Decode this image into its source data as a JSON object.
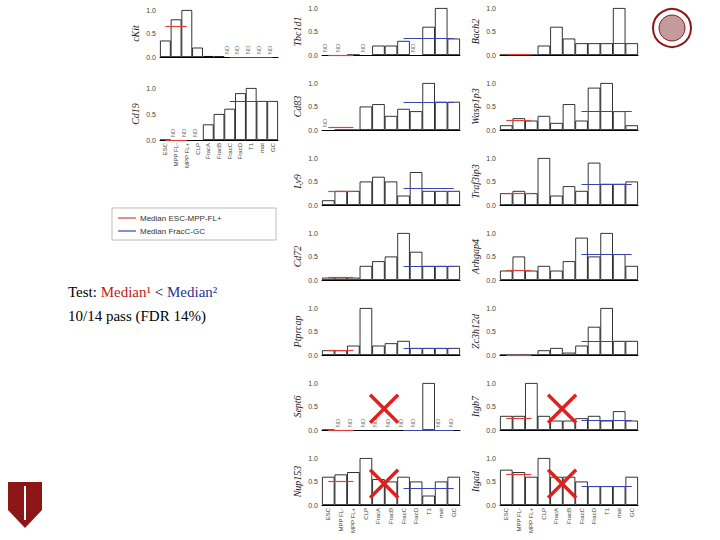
{
  "chart_data": [
    {
      "type": "bar",
      "ylabel": "cKit",
      "categories": [
        "ESC",
        "MPP FL-",
        "MPP FL+",
        "CLP",
        "FracA",
        "FracB",
        "FracC",
        "FracD",
        "T1",
        "mat",
        "GC"
      ],
      "values": [
        0.35,
        0.8,
        1.0,
        0.2,
        0.02,
        0.01,
        null,
        null,
        null,
        null,
        null
      ],
      "value_labels": [
        null,
        null,
        null,
        null,
        null,
        null,
        "ND",
        "ND",
        "ND",
        "ND",
        "ND"
      ],
      "medians": [
        0.65,
        0
      ],
      "color": "#ffffff",
      "ylim": [
        0,
        1
      ],
      "yticks": [
        {
          "value": 0,
          "label": "0.0"
        },
        0.5,
        {
          "value": 1,
          "label": "1.0"
        }
      ],
      "tick_labels": "y"
    },
    {
      "type": "bar",
      "ylabel": "Cd19",
      "categories": [
        "ESC",
        "MPP FL-",
        "MPP FL+",
        "CLP",
        "FracA",
        "FracB",
        "FracC",
        "FracD",
        "T1",
        "mat",
        "GC"
      ],
      "values": [
        0,
        null,
        null,
        null,
        0.3,
        0.5,
        0.6,
        0.9,
        1.0,
        0.75,
        0.75
      ],
      "value_labels": [
        null,
        "ND",
        "ND",
        "ND",
        null,
        null,
        null,
        null,
        null,
        null,
        null
      ],
      "medians": [
        0,
        0.75
      ],
      "color": "#ffffff",
      "ylim": [
        0,
        1
      ],
      "yticks": [
        {
          "value": 0,
          "label": "0.0"
        },
        0.5,
        {
          "value": 1,
          "label": "1.0"
        }
      ]
    },
    {
      "type": "bar",
      "ylabel": "Tbc1d1",
      "categories": [
        "ESC",
        "MPP FL-",
        "MPP FL+",
        "CLP",
        "FracA",
        "FracB",
        "FracC",
        "FracD",
        "T1",
        "mat",
        "GC"
      ],
      "values": [
        null,
        null,
        0,
        null,
        0.2,
        0.2,
        0.3,
        null,
        0.6,
        1.0,
        0.35
      ],
      "value_labels": [
        "ND",
        "ND",
        null,
        "ND",
        null,
        null,
        null,
        "ND",
        null,
        null,
        null
      ],
      "medians": [
        0,
        0.35
      ],
      "color": "#ffffff",
      "ylim": [
        0,
        1
      ],
      "yticks": [
        {
          "value": 0,
          "label": "0.0"
        },
        0.5,
        {
          "value": 1,
          "label": "1.0"
        }
      ],
      "tick_labels": "y"
    },
    {
      "type": "bar",
      "ylabel": "Cd83",
      "categories": [
        "ESC",
        "MPP FL-",
        "MPP FL+",
        "CLP",
        "FracA",
        "FracB",
        "FracC",
        "FracD",
        "T1",
        "mat",
        "GC"
      ],
      "values": [
        null,
        0,
        0,
        0.5,
        0.55,
        0.3,
        0.45,
        0.4,
        1.0,
        0.6,
        0.6
      ],
      "value_labels": [
        "ND",
        null,
        null,
        null,
        null,
        null,
        null,
        null,
        null,
        null,
        null
      ],
      "medians": [
        0.05,
        0.6
      ],
      "color": "#ffffff",
      "ylim": [
        0,
        1
      ],
      "yticks": [
        {
          "value": 0,
          "label": "0.0"
        },
        0.5,
        {
          "value": 1,
          "label": "1.0"
        }
      ],
      "tick_labels": "y"
    },
    {
      "type": "bar",
      "ylabel": "Ly9",
      "categories": [
        "ESC",
        "MPP FL-",
        "MPP FL+",
        "CLP",
        "FracA",
        "FracB",
        "FracC",
        "FracD",
        "T1",
        "mat",
        "GC"
      ],
      "values": [
        0.1,
        0.3,
        0.3,
        0.5,
        0.6,
        0.5,
        0.2,
        0.7,
        0.3,
        0.3,
        0.3
      ],
      "value_labels": [
        null,
        null,
        null,
        null,
        null,
        null,
        null,
        null,
        null,
        null,
        null
      ],
      "medians": [
        0.3,
        0.35
      ],
      "color": "#ffffff",
      "ylim": [
        0,
        1
      ],
      "yticks": [
        {
          "value": 0,
          "label": "0.0"
        },
        0.5,
        {
          "value": 1,
          "label": "1.0"
        }
      ],
      "tick_labels": "y"
    },
    {
      "type": "bar",
      "ylabel": "Cd72",
      "categories": [
        "ESC",
        "MPP FL-",
        "MPP FL+",
        "CLP",
        "FracA",
        "FracB",
        "FracC",
        "FracD",
        "T1",
        "mat",
        "GC"
      ],
      "values": [
        0.05,
        0.05,
        0.05,
        0.3,
        0.4,
        0.5,
        1.0,
        0.6,
        0.3,
        0.3,
        0.3
      ],
      "value_labels": [
        null,
        null,
        null,
        null,
        null,
        null,
        null,
        null,
        null,
        null,
        null
      ],
      "medians": [
        0.05,
        0.3
      ],
      "color": "#ffffff",
      "ylim": [
        0,
        1
      ],
      "yticks": [
        {
          "value": 0,
          "label": "0.0"
        },
        0.5,
        {
          "value": 1,
          "label": "1.0"
        }
      ],
      "tick_labels": "y"
    },
    {
      "type": "bar",
      "ylabel": "Ptprcap",
      "categories": [
        "ESC",
        "MPP FL-",
        "MPP FL+",
        "CLP",
        "FracA",
        "FracB",
        "FracC",
        "FracD",
        "T1",
        "mat",
        "GC"
      ],
      "values": [
        0.1,
        0.1,
        0.2,
        1.0,
        0.2,
        0.25,
        0.3,
        0.15,
        0.15,
        0.15,
        0.15
      ],
      "value_labels": [
        null,
        null,
        null,
        null,
        null,
        null,
        null,
        null,
        null,
        null,
        null
      ],
      "medians": [
        0.1,
        0.15
      ],
      "color": "#ffffff",
      "ylim": [
        0,
        1
      ],
      "yticks": [
        {
          "value": 0,
          "label": "0.0"
        },
        0.5,
        {
          "value": 1,
          "label": "1.0"
        }
      ],
      "tick_labels": "y"
    },
    {
      "type": "bar",
      "ylabel": "Sept6",
      "categories": [
        "ESC",
        "MPP FL-",
        "MPP FL+",
        "CLP",
        "FracA",
        "FracB",
        "FracC",
        "FracD",
        "T1",
        "mat",
        "GC"
      ],
      "values": [
        0,
        null,
        null,
        null,
        null,
        null,
        null,
        null,
        1.0,
        null,
        null
      ],
      "value_labels": [
        null,
        "ND",
        "ND",
        "ND",
        "ND",
        "ND",
        "ND",
        "ND",
        null,
        "ND",
        "ND"
      ],
      "medians": [
        0,
        0
      ],
      "color": "#ffffff",
      "ylim": [
        0,
        1
      ],
      "yticks": [
        {
          "value": 0,
          "label": "0.0"
        },
        0.5,
        {
          "value": 1,
          "label": "1.0"
        }
      ],
      "tick_labels": "y"
    },
    {
      "type": "bar",
      "ylabel": "Nup153",
      "categories": [
        "ESC",
        "MPP FL-",
        "MPP FL+",
        "CLP",
        "FracA",
        "FracB",
        "FracC",
        "FracD",
        "T1",
        "mat",
        "GC"
      ],
      "values": [
        0.6,
        0.65,
        0.7,
        1.0,
        0.55,
        0.5,
        0.6,
        0.5,
        0.2,
        0.5,
        0.6
      ],
      "value_labels": [
        null,
        null,
        null,
        null,
        null,
        null,
        null,
        null,
        null,
        null,
        null
      ],
      "medians": [
        0.5,
        0.35
      ],
      "color": "#ffffff",
      "ylim": [
        0,
        1
      ],
      "yticks": [
        {
          "value": 0,
          "label": "0.0"
        },
        0.5,
        {
          "value": 1,
          "label": "1.0"
        }
      ]
    },
    {
      "type": "bar",
      "ylabel": "Bach2",
      "categories": [
        "ESC",
        "MPP FL-",
        "MPP FL+",
        "CLP",
        "FracA",
        "FracB",
        "FracC",
        "FracD",
        "T1",
        "mat",
        "GC"
      ],
      "values": [
        0,
        0,
        0,
        0.2,
        0.6,
        0.35,
        0.25,
        0.25,
        0.25,
        1.0,
        0.25
      ],
      "value_labels": [
        null,
        null,
        null,
        null,
        null,
        null,
        null,
        null,
        null,
        null,
        null
      ],
      "medians": [
        0.02,
        0.25
      ],
      "color": "#ffffff",
      "ylim": [
        0,
        1
      ],
      "yticks": [
        {
          "value": 0,
          "label": "0.0"
        },
        0.5,
        {
          "value": 1,
          "label": "1.0"
        }
      ],
      "tick_labels": "y"
    },
    {
      "type": "bar",
      "ylabel": "Wasp1p3",
      "categories": [
        "ESC",
        "MPP FL-",
        "MPP FL+",
        "CLP",
        "FracA",
        "FracB",
        "FracC",
        "FracD",
        "T1",
        "mat",
        "GC"
      ],
      "values": [
        0.1,
        0.25,
        0.2,
        0.3,
        0.15,
        0.55,
        0.2,
        0.9,
        1.0,
        0.4,
        0.1
      ],
      "value_labels": [
        null,
        null,
        null,
        null,
        null,
        null,
        null,
        null,
        null,
        null,
        null
      ],
      "medians": [
        0.2,
        0.4
      ],
      "color": "#ffffff",
      "ylim": [
        0,
        1
      ],
      "yticks": [
        {
          "value": 0,
          "label": "0.0"
        },
        0.5,
        {
          "value": 1,
          "label": "1.0"
        }
      ],
      "tick_labels": "y"
    },
    {
      "type": "bar",
      "ylabel": "Traf3ip3",
      "categories": [
        "ESC",
        "MPP FL-",
        "MPP FL+",
        "CLP",
        "FracA",
        "FracB",
        "FracC",
        "FracD",
        "T1",
        "mat",
        "GC"
      ],
      "values": [
        0.25,
        0.3,
        0.25,
        1.0,
        0.2,
        0.4,
        0.3,
        0.9,
        0.45,
        0.45,
        0.5
      ],
      "value_labels": [
        null,
        null,
        null,
        null,
        null,
        null,
        null,
        null,
        null,
        null,
        null
      ],
      "medians": [
        0.25,
        0.45
      ],
      "color": "#ffffff",
      "ylim": [
        0,
        1
      ],
      "yticks": [
        {
          "value": 0,
          "label": "0.0"
        },
        0.5,
        {
          "value": 1,
          "label": "1.0"
        }
      ],
      "tick_labels": "y"
    },
    {
      "type": "bar",
      "ylabel": "Arhgap4",
      "categories": [
        "ESC",
        "MPP FL-",
        "MPP FL+",
        "CLP",
        "FracA",
        "FracB",
        "FracC",
        "FracD",
        "T1",
        "mat",
        "GC"
      ],
      "values": [
        0.2,
        0.5,
        0.2,
        0.3,
        0.2,
        0.4,
        0.9,
        0.5,
        1.0,
        0.55,
        0.3
      ],
      "value_labels": [
        null,
        null,
        null,
        null,
        null,
        null,
        null,
        null,
        null,
        null,
        null
      ],
      "medians": [
        0.2,
        0.55
      ],
      "color": "#ffffff",
      "ylim": [
        0,
        1
      ],
      "yticks": [
        {
          "value": 0,
          "label": "0.0"
        },
        0.5,
        {
          "value": 1,
          "label": "1.0"
        }
      ],
      "tick_labels": "y"
    },
    {
      "type": "bar",
      "ylabel": "Zc3h12d",
      "categories": [
        "ESC",
        "MPP FL-",
        "MPP FL+",
        "CLP",
        "FracA",
        "FracB",
        "FracC",
        "FracD",
        "T1",
        "mat",
        "GC"
      ],
      "values": [
        0,
        0,
        0,
        0.1,
        0.15,
        0.05,
        0.2,
        0.6,
        1.0,
        0.3,
        0.3
      ],
      "value_labels": [
        null,
        null,
        null,
        null,
        null,
        null,
        null,
        null,
        null,
        null,
        null
      ],
      "medians": [
        0,
        0.3
      ],
      "color": "#ffffff",
      "ylim": [
        0,
        1
      ],
      "yticks": [
        {
          "value": 0,
          "label": "0.0"
        },
        0.5,
        {
          "value": 1,
          "label": "1.0"
        }
      ],
      "tick_labels": "y"
    },
    {
      "type": "bar",
      "ylabel": "Itgb7",
      "categories": [
        "ESC",
        "MPP FL-",
        "MPP FL+",
        "CLP",
        "FracA",
        "FracB",
        "FracC",
        "FracD",
        "T1",
        "mat",
        "GC"
      ],
      "values": [
        0.3,
        0.3,
        1.0,
        0.3,
        0.2,
        0.2,
        0.25,
        0.3,
        0.2,
        0.4,
        0.2
      ],
      "value_labels": [
        null,
        null,
        null,
        null,
        null,
        null,
        null,
        null,
        null,
        null,
        null
      ],
      "medians": [
        0.25,
        0.2
      ],
      "color": "#ffffff",
      "ylim": [
        0,
        1
      ],
      "yticks": [
        {
          "value": 0,
          "label": "0.0"
        },
        0.5,
        {
          "value": 1,
          "label": "1.0"
        }
      ],
      "tick_labels": "y"
    },
    {
      "type": "bar",
      "ylabel": "Itgad",
      "categories": [
        "ESC",
        "MPP FL-",
        "MPP FL+",
        "CLP",
        "FracA",
        "FracB",
        "FracC",
        "FracD",
        "T1",
        "mat",
        "GC"
      ],
      "values": [
        0.75,
        0.7,
        0.6,
        1.0,
        0.6,
        0.6,
        0.5,
        0.4,
        0.4,
        0.4,
        0.6
      ],
      "value_labels": [
        null,
        null,
        null,
        null,
        null,
        null,
        null,
        null,
        null,
        null,
        null
      ],
      "medians": [
        0.65,
        0.4
      ],
      "color": "#ffffff",
      "ylim": [
        0,
        1
      ],
      "yticks": [
        {
          "value": 0,
          "label": "0.0"
        },
        0.5,
        {
          "value": 1,
          "label": "1.0"
        }
      ]
    }
  ],
  "median_groups": [
    {
      "name": "Median ESC-MPP-FL+",
      "color": "#e0403c",
      "from": "ESC",
      "to": "MPP FL+"
    },
    {
      "name": "Median FracC-GC",
      "color": "#3a44b0",
      "from": "FracC",
      "to": "GC"
    }
  ],
  "failed": [
    "Sept6",
    "Nup153",
    "Itgb7",
    "Itgad"
  ],
  "test": {
    "parts": [
      {
        "text": "Test: ",
        "color": "#000000"
      },
      {
        "text": "Median¹",
        "color": "#c0201c"
      },
      {
        "text": " < ",
        "color": "#000000"
      },
      {
        "text": "Median²",
        "color": "#2a3490"
      }
    ],
    "result": "10/14 pass (FDR 14%)"
  }
}
